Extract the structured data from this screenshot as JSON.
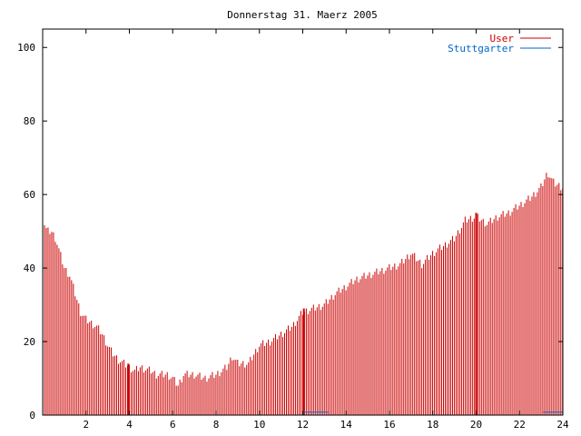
{
  "chart_data": {
    "type": "bar",
    "title": "Donnerstag 31. Maerz 2005",
    "xlabel": "",
    "ylabel": "",
    "xlim": [
      0,
      24
    ],
    "ylim": [
      0,
      105
    ],
    "x_ticks": [
      2,
      4,
      6,
      8,
      10,
      12,
      14,
      16,
      18,
      20,
      22,
      24
    ],
    "y_ticks": [
      0,
      20,
      40,
      60,
      80,
      100
    ],
    "grid": false,
    "legend_position": "top-right",
    "bar_step_hours": 0.0833,
    "series": [
      {
        "name": "User",
        "color": "#cc0000",
        "anchors": [
          [
            0.0,
            57
          ],
          [
            0.1,
            51
          ],
          [
            0.25,
            50
          ],
          [
            0.4,
            50
          ],
          [
            0.6,
            48
          ],
          [
            0.75,
            45
          ],
          [
            1.0,
            40
          ],
          [
            1.25,
            38
          ],
          [
            1.5,
            33
          ],
          [
            1.75,
            28
          ],
          [
            2.0,
            26
          ],
          [
            2.25,
            25
          ],
          [
            2.5,
            24
          ],
          [
            2.75,
            22
          ],
          [
            3.0,
            19
          ],
          [
            3.2,
            17
          ],
          [
            3.5,
            15
          ],
          [
            3.75,
            14
          ],
          [
            4.0,
            13
          ],
          [
            4.25,
            12
          ],
          [
            4.5,
            13
          ],
          [
            5.0,
            12
          ],
          [
            5.25,
            11
          ],
          [
            5.75,
            11
          ],
          [
            6.0,
            10
          ],
          [
            6.25,
            8
          ],
          [
            6.5,
            11
          ],
          [
            7.0,
            11
          ],
          [
            7.5,
            10
          ],
          [
            8.0,
            11
          ],
          [
            8.5,
            13
          ],
          [
            8.75,
            16
          ],
          [
            9.0,
            14
          ],
          [
            9.5,
            14
          ],
          [
            10.0,
            19
          ],
          [
            10.5,
            20
          ],
          [
            11.0,
            22
          ],
          [
            11.5,
            24
          ],
          [
            12.0,
            28
          ],
          [
            12.5,
            29
          ],
          [
            13.0,
            30
          ],
          [
            13.5,
            33
          ],
          [
            14.0,
            35
          ],
          [
            14.5,
            37
          ],
          [
            15.0,
            38
          ],
          [
            15.5,
            39
          ],
          [
            16.0,
            40
          ],
          [
            16.5,
            41
          ],
          [
            17.0,
            44
          ],
          [
            17.5,
            41
          ],
          [
            18.0,
            44
          ],
          [
            18.5,
            46
          ],
          [
            19.0,
            48
          ],
          [
            19.5,
            53
          ],
          [
            20.0,
            54
          ],
          [
            20.5,
            52
          ],
          [
            21.0,
            54
          ],
          [
            21.5,
            55
          ],
          [
            22.0,
            57
          ],
          [
            22.5,
            59
          ],
          [
            23.0,
            62
          ],
          [
            23.3,
            66
          ],
          [
            23.6,
            63
          ],
          [
            24.0,
            62
          ]
        ],
        "highlights": [
          [
            3.95,
            14
          ],
          [
            12.05,
            29
          ],
          [
            20.0,
            55
          ]
        ]
      },
      {
        "name": "Stuttgarter",
        "color": "#0066cc",
        "segments": [
          [
            12.0,
            13.2,
            0.8
          ],
          [
            23.1,
            24.0,
            0.8
          ]
        ]
      }
    ]
  }
}
